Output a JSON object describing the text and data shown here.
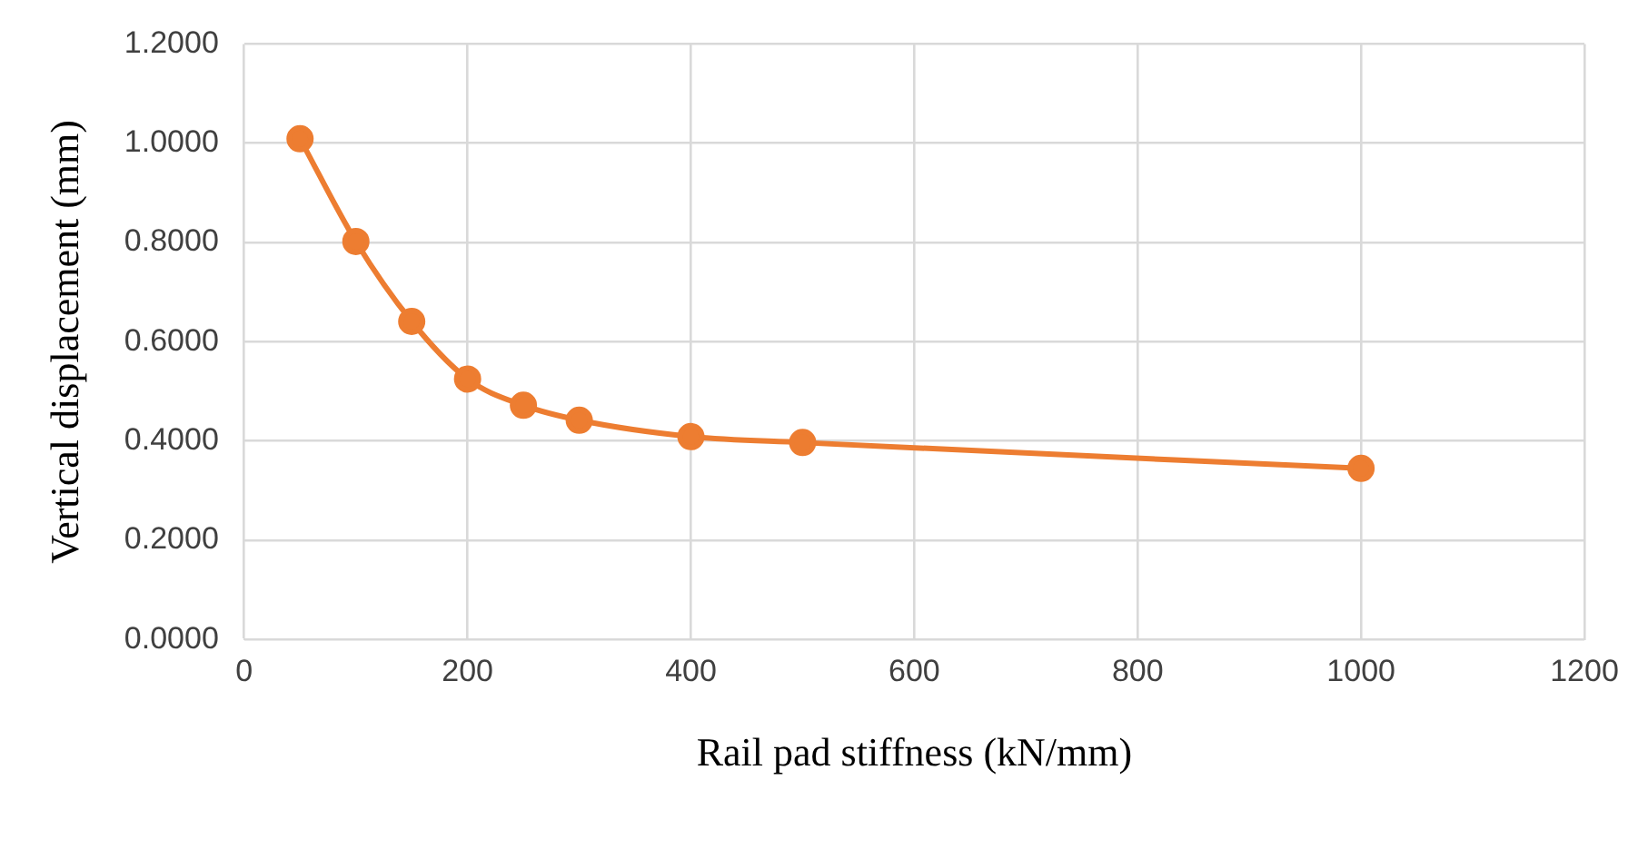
{
  "chart_data": {
    "type": "line",
    "xlabel": "Rail pad stiffness (kN/mm)",
    "ylabel": "Vertical displacement (mm)",
    "x": [
      50,
      100,
      150,
      200,
      250,
      300,
      400,
      500,
      1000
    ],
    "series": [
      {
        "color": "#ed7d31",
        "values": [
          1.009,
          0.802,
          0.641,
          0.525,
          0.472,
          0.442,
          0.409,
          0.397,
          0.345
        ]
      }
    ],
    "xlim": [
      0,
      1200
    ],
    "xticks": [
      0,
      200,
      400,
      600,
      800,
      1000,
      1200
    ],
    "ylim": [
      0,
      1.2
    ],
    "yticks": [
      {
        "value": 0,
        "label": "0.0000"
      },
      {
        "value": 0.2,
        "label": "0.2000"
      },
      {
        "value": 0.4,
        "label": "0.4000"
      },
      {
        "value": 0.6,
        "label": "0.6000"
      },
      {
        "value": 0.8,
        "label": "0.8000"
      },
      {
        "value": 1,
        "label": "1.0000"
      },
      {
        "value": 1.2,
        "label": "1.2000"
      }
    ],
    "grid": true,
    "marker": "circle",
    "line_style": "solid",
    "legend": false
  }
}
